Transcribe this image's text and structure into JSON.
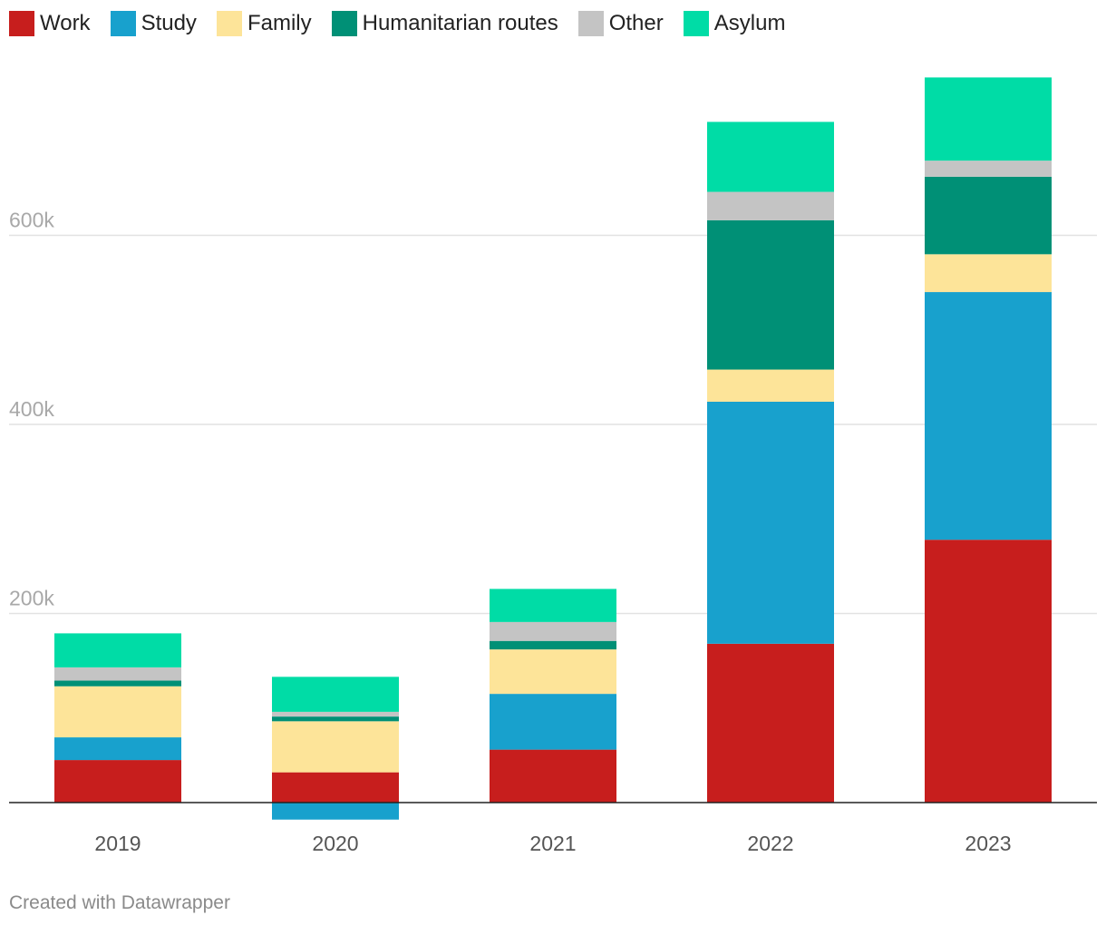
{
  "chart_data": {
    "type": "bar",
    "stacked": true,
    "categories": [
      "2019",
      "2020",
      "2021",
      "2022",
      "2023"
    ],
    "series": [
      {
        "name": "Work",
        "color": "#c71e1d",
        "values": [
          45000,
          32000,
          56000,
          168000,
          278000
        ]
      },
      {
        "name": "Study",
        "color": "#18a1cd",
        "values": [
          24000,
          -18000,
          59000,
          256000,
          262000
        ]
      },
      {
        "name": "Family",
        "color": "#fde499",
        "values": [
          54000,
          54000,
          47000,
          34000,
          40000
        ]
      },
      {
        "name": "Humanitarian routes",
        "color": "#009076",
        "values": [
          6000,
          5000,
          9000,
          158000,
          82000
        ]
      },
      {
        "name": "Other",
        "color": "#c4c4c4",
        "values": [
          14000,
          5000,
          20000,
          30000,
          17000
        ]
      },
      {
        "name": "Asylum",
        "color": "#00dca6",
        "values": [
          36000,
          37000,
          35000,
          74000,
          88000
        ]
      }
    ],
    "y_ticks": [
      200000,
      400000,
      600000
    ],
    "y_tick_labels": [
      "200k",
      "400k",
      "600k"
    ],
    "ylim": [
      -30000,
      770000
    ],
    "grid": true,
    "legend_position": "top-left",
    "title": "",
    "xlabel": "",
    "ylabel": ""
  },
  "footer": {
    "credit": "Created with Datawrapper"
  }
}
